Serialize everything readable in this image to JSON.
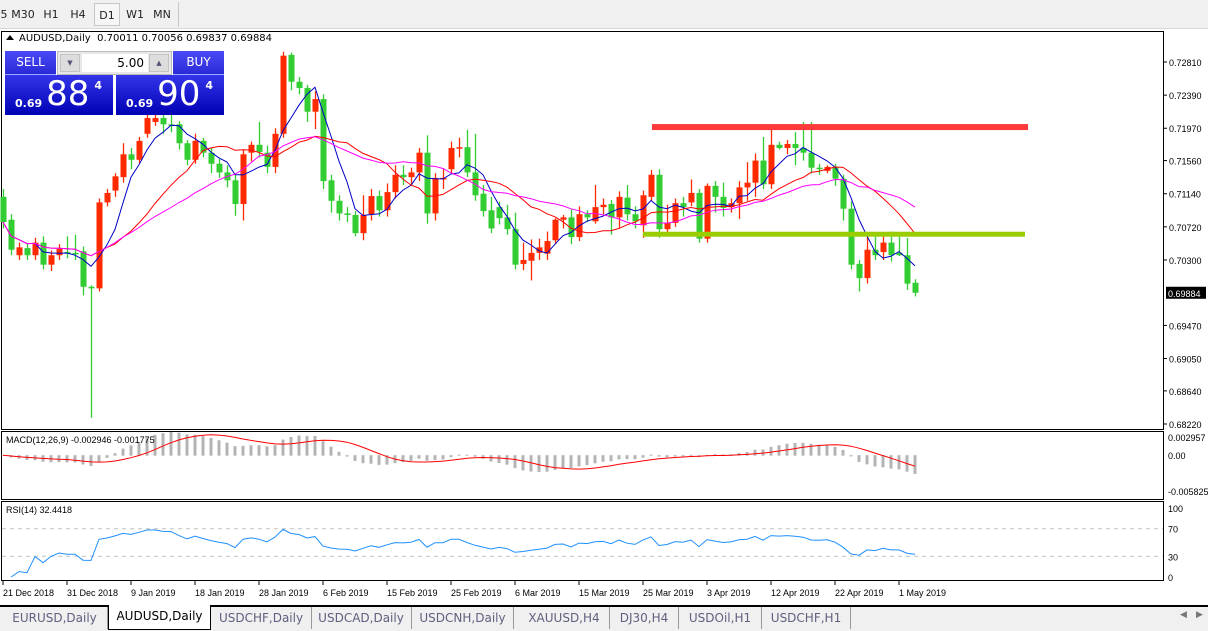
{
  "toolbar": {
    "timeframes": [
      "5",
      "M30",
      "H1",
      "H4",
      "D1",
      "W1",
      "MN"
    ],
    "active": "D1"
  },
  "chart": {
    "symbol": "AUDUSD,Daily",
    "ohlc_header": "0.70011 0.70056 0.69837 0.69884",
    "current_price": "0.69884",
    "price_ticks": [
      "0.72810",
      "0.72390",
      "0.71970",
      "0.71560",
      "0.71140",
      "0.70720",
      "0.70300",
      "0.69470",
      "0.69050",
      "0.68640",
      "0.68220"
    ],
    "price_range": [
      0.6822,
      0.7281
    ],
    "colors": {
      "bull": "#ff2a00",
      "bear": "#32cd32",
      "ma_fast": "#0000c8",
      "ma_mid": "#ff0000",
      "ma_slow": "#ff00ff",
      "resistance": "#ff3a3a",
      "support": "#9acd00"
    },
    "horizontal_lines": {
      "resistance": 0.71985,
      "support": 0.7062
    },
    "date_labels": [
      "21 Dec 2018",
      "31 Dec 2018",
      "9 Jan 2019",
      "18 Jan 2019",
      "28 Jan 2019",
      "6 Feb 2019",
      "15 Feb 2019",
      "25 Feb 2019",
      "6 Mar 2019",
      "15 Mar 2019",
      "25 Mar 2019",
      "3 Apr 2019",
      "12 Apr 2019",
      "22 Apr 2019",
      "1 May 2019"
    ],
    "candles": [
      [
        0.711,
        0.712,
        0.707,
        0.7078
      ],
      [
        0.7081,
        0.7088,
        0.7036,
        0.7043
      ],
      [
        0.7036,
        0.7052,
        0.703,
        0.7046
      ],
      [
        0.7045,
        0.705,
        0.703,
        0.7036
      ],
      [
        0.7036,
        0.7058,
        0.703,
        0.7052
      ],
      [
        0.7052,
        0.706,
        0.7018,
        0.7024
      ],
      [
        0.7024,
        0.7042,
        0.7016,
        0.7036
      ],
      [
        0.7036,
        0.705,
        0.703,
        0.7044
      ],
      [
        0.704,
        0.706,
        0.7032,
        0.7038
      ],
      [
        0.7039,
        0.7062,
        0.703,
        0.7038
      ],
      [
        0.7041,
        0.7047,
        0.6985,
        0.6996
      ],
      [
        0.6996,
        0.6998,
        0.683,
        0.6994
      ],
      [
        0.6994,
        0.7108,
        0.699,
        0.7103
      ],
      [
        0.7103,
        0.712,
        0.7098,
        0.7115
      ],
      [
        0.7118,
        0.714,
        0.711,
        0.7136
      ],
      [
        0.7135,
        0.7178,
        0.7128,
        0.7164
      ],
      [
        0.7164,
        0.7172,
        0.7145,
        0.7157
      ],
      [
        0.7157,
        0.7186,
        0.7152,
        0.7181
      ],
      [
        0.719,
        0.7215,
        0.7185,
        0.721
      ],
      [
        0.7205,
        0.7215,
        0.72,
        0.721
      ],
      [
        0.721,
        0.7215,
        0.719,
        0.7202
      ],
      [
        0.7202,
        0.7215,
        0.7192,
        0.7201
      ],
      [
        0.7202,
        0.7206,
        0.717,
        0.7178
      ],
      [
        0.7178,
        0.7182,
        0.715,
        0.7157
      ],
      [
        0.7157,
        0.719,
        0.7152,
        0.7181
      ],
      [
        0.7181,
        0.7185,
        0.716,
        0.7166
      ],
      [
        0.7166,
        0.7172,
        0.714,
        0.7152
      ],
      [
        0.7152,
        0.7158,
        0.7134,
        0.7141
      ],
      [
        0.7141,
        0.715,
        0.7122,
        0.7131
      ],
      [
        0.7131,
        0.714,
        0.7086,
        0.7101
      ],
      [
        0.7101,
        0.717,
        0.708,
        0.7164
      ],
      [
        0.7166,
        0.718,
        0.7155,
        0.7176
      ],
      [
        0.7176,
        0.7205,
        0.716,
        0.7167
      ],
      [
        0.7166,
        0.7175,
        0.714,
        0.7148
      ],
      [
        0.7148,
        0.7197,
        0.714,
        0.719
      ],
      [
        0.719,
        0.7294,
        0.7185,
        0.7289
      ],
      [
        0.729,
        0.7293,
        0.7245,
        0.7256
      ],
      [
        0.7256,
        0.7262,
        0.724,
        0.7248
      ],
      [
        0.7248,
        0.7252,
        0.7205,
        0.7218
      ],
      [
        0.7218,
        0.7244,
        0.7196,
        0.7234
      ],
      [
        0.7234,
        0.724,
        0.712,
        0.713
      ],
      [
        0.7131,
        0.7138,
        0.709,
        0.7105
      ],
      [
        0.7105,
        0.7112,
        0.708,
        0.7089
      ],
      [
        0.7089,
        0.7097,
        0.7078,
        0.7087
      ],
      [
        0.7087,
        0.7092,
        0.706,
        0.7064
      ],
      [
        0.7064,
        0.7112,
        0.7055,
        0.7087
      ],
      [
        0.7088,
        0.712,
        0.708,
        0.7111
      ],
      [
        0.7111,
        0.7118,
        0.7085,
        0.7093
      ],
      [
        0.7093,
        0.7127,
        0.7085,
        0.7116
      ],
      [
        0.7116,
        0.715,
        0.7108,
        0.7138
      ],
      [
        0.7138,
        0.715,
        0.7125,
        0.7135
      ],
      [
        0.7135,
        0.7147,
        0.7125,
        0.7141
      ],
      [
        0.7141,
        0.7172,
        0.713,
        0.7166
      ],
      [
        0.7166,
        0.7188,
        0.7076,
        0.7089
      ],
      [
        0.7089,
        0.714,
        0.708,
        0.7134
      ],
      [
        0.7134,
        0.7145,
        0.712,
        0.7134
      ],
      [
        0.7145,
        0.718,
        0.714,
        0.7172
      ],
      [
        0.7172,
        0.7185,
        0.716,
        0.7173
      ],
      [
        0.7173,
        0.7195,
        0.7135,
        0.7141
      ],
      [
        0.7141,
        0.719,
        0.7105,
        0.7112
      ],
      [
        0.7114,
        0.7125,
        0.7085,
        0.7092
      ],
      [
        0.7093,
        0.711,
        0.7064,
        0.707
      ],
      [
        0.7097,
        0.7104,
        0.7075,
        0.7083
      ],
      [
        0.7084,
        0.71,
        0.7062,
        0.7069
      ],
      [
        0.7069,
        0.709,
        0.7018,
        0.7024
      ],
      [
        0.7025,
        0.7052,
        0.7017,
        0.703
      ],
      [
        0.7029,
        0.7056,
        0.7004,
        0.7039
      ],
      [
        0.7039,
        0.7057,
        0.703,
        0.7046
      ],
      [
        0.7038,
        0.7066,
        0.703,
        0.7054
      ],
      [
        0.7055,
        0.7083,
        0.705,
        0.7081
      ],
      [
        0.7081,
        0.7087,
        0.707,
        0.7084
      ],
      [
        0.7084,
        0.7094,
        0.705,
        0.7059
      ],
      [
        0.7059,
        0.7098,
        0.7054,
        0.7088
      ],
      [
        0.7088,
        0.7093,
        0.7078,
        0.7084
      ],
      [
        0.7079,
        0.7125,
        0.7076,
        0.7097
      ],
      [
        0.7097,
        0.7108,
        0.7088,
        0.71
      ],
      [
        0.7101,
        0.7106,
        0.7062,
        0.7084
      ],
      [
        0.7084,
        0.7117,
        0.707,
        0.711
      ],
      [
        0.7109,
        0.7125,
        0.708,
        0.7088
      ],
      [
        0.7088,
        0.7098,
        0.707,
        0.7079
      ],
      [
        0.7074,
        0.7118,
        0.7058,
        0.7112
      ],
      [
        0.711,
        0.7144,
        0.7105,
        0.7138
      ],
      [
        0.7138,
        0.7145,
        0.7058,
        0.7069
      ],
      [
        0.7069,
        0.71,
        0.7064,
        0.7077
      ],
      [
        0.7077,
        0.7108,
        0.7072,
        0.7102
      ],
      [
        0.7102,
        0.711,
        0.7085,
        0.7097
      ],
      [
        0.7103,
        0.7132,
        0.7098,
        0.7115
      ],
      [
        0.7115,
        0.712,
        0.7052,
        0.7057
      ],
      [
        0.7057,
        0.7127,
        0.7052,
        0.7124
      ],
      [
        0.7124,
        0.713,
        0.709,
        0.711
      ],
      [
        0.711,
        0.7128,
        0.7085,
        0.7096
      ],
      [
        0.7097,
        0.7108,
        0.709,
        0.7102
      ],
      [
        0.7102,
        0.713,
        0.7082,
        0.7122
      ],
      [
        0.7122,
        0.7154,
        0.7105,
        0.7128
      ],
      [
        0.7128,
        0.7165,
        0.711,
        0.7156
      ],
      [
        0.7156,
        0.7186,
        0.712,
        0.7126
      ],
      [
        0.7126,
        0.7195,
        0.712,
        0.7176
      ],
      [
        0.7176,
        0.718,
        0.717,
        0.7172
      ],
      [
        0.7172,
        0.7182,
        0.7164,
        0.7177
      ],
      [
        0.7177,
        0.7192,
        0.715,
        0.7172
      ],
      [
        0.7172,
        0.7205,
        0.7156,
        0.7166
      ],
      [
        0.7166,
        0.7205,
        0.714,
        0.7147
      ],
      [
        0.7147,
        0.7152,
        0.7138,
        0.7145
      ],
      [
        0.7143,
        0.715,
        0.714,
        0.7148
      ],
      [
        0.7148,
        0.7152,
        0.7124,
        0.7133
      ],
      [
        0.7133,
        0.7138,
        0.708,
        0.7095
      ],
      [
        0.7095,
        0.7104,
        0.7018,
        0.7024
      ],
      [
        0.7025,
        0.703,
        0.699,
        0.7007
      ],
      [
        0.7007,
        0.7064,
        0.7,
        0.7043
      ],
      [
        0.7043,
        0.7062,
        0.703,
        0.7036
      ],
      [
        0.704,
        0.7062,
        0.703,
        0.7052
      ],
      [
        0.7052,
        0.7066,
        0.7028,
        0.7036
      ],
      [
        0.7039,
        0.7062,
        0.7035,
        0.7036
      ],
      [
        0.7036,
        0.7058,
        0.6992,
        0.7
      ],
      [
        0.70011,
        0.70056,
        0.69837,
        0.69884
      ]
    ]
  },
  "macd": {
    "label": "MACD(12,26,9) -0.002946 -0.001775",
    "ticks": [
      "0.002957",
      "0.00",
      "-0.005825"
    ],
    "range": [
      -0.005825,
      0.002957
    ],
    "hist_color": "#b4b4b4",
    "signal_color": "#ff0000"
  },
  "rsi": {
    "label": "RSI(14) 32.4418",
    "ticks": [
      "100",
      "70",
      "30",
      "0"
    ],
    "levels": [
      70,
      30
    ],
    "line_color": "#1e90ff"
  },
  "trade_panel": {
    "sell_label": "SELL",
    "buy_label": "BUY",
    "lot": "5.00",
    "sell": {
      "prefix": "0.69",
      "big": "88",
      "sup": "4"
    },
    "buy": {
      "prefix": "0.69",
      "big": "90",
      "sup": "4"
    }
  },
  "tabs": [
    "EURUSD,Daily",
    "AUDUSD,Daily",
    "USDCHF,Daily",
    "USDCAD,Daily",
    "USDCNH,Daily",
    "XAUUSD,H4",
    "DJ30,H4",
    "USDOil,H1",
    "USDCHF,H1"
  ],
  "active_tab": "AUDUSD,Daily"
}
